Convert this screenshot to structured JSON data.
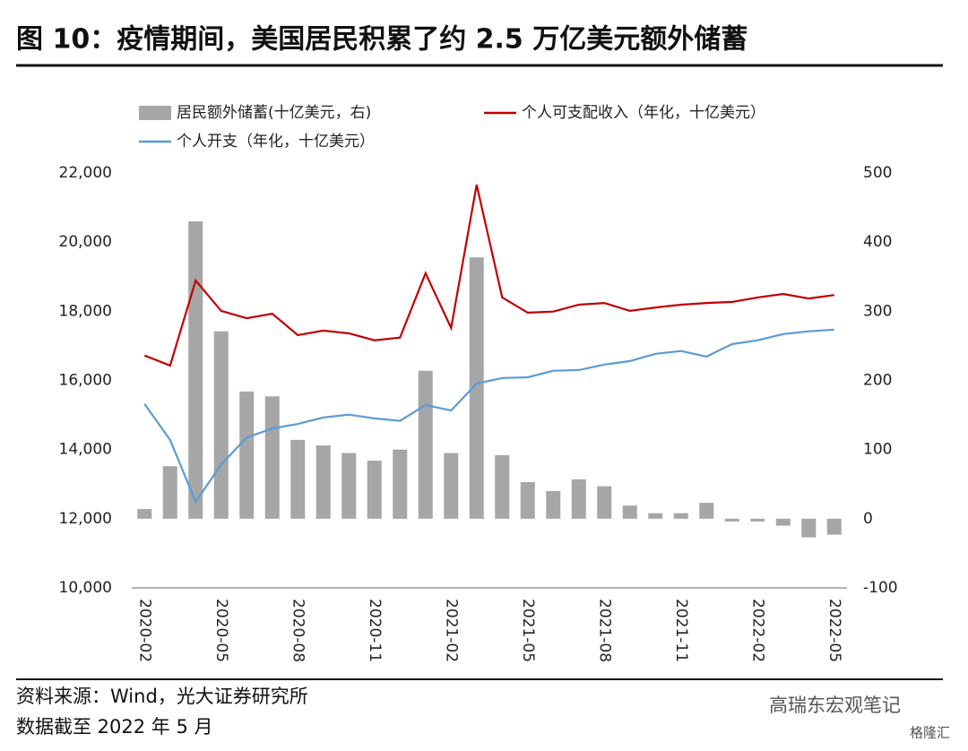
{
  "header": {
    "title": "图 10：疫情期间，美国居民积累了约 2.5 万亿美元额外储蓄"
  },
  "chart_data": {
    "type": "combo",
    "categories": [
      "2020-02",
      null,
      null,
      "2020-05",
      null,
      null,
      "2020-08",
      null,
      null,
      "2020-11",
      null,
      null,
      "2021-02",
      null,
      null,
      "2021-05",
      null,
      null,
      "2021-08",
      null,
      null,
      "2021-11",
      null,
      null,
      "2022-02",
      null,
      null,
      "2022-05"
    ],
    "series": [
      {
        "name": "居民额外储蓄(十亿美元，右)",
        "color": "#a6a6a6",
        "kind": "bar",
        "axis": "y2",
        "values": [
          14,
          76,
          430,
          271,
          184,
          177,
          114,
          106,
          95,
          84,
          100,
          214,
          95,
          378,
          92,
          53,
          40,
          57,
          47,
          19,
          8,
          8,
          23,
          -4,
          -4,
          -10,
          -27,
          -23
        ]
      },
      {
        "name": "个人可支配收入（年化，十亿美元）",
        "color": "#c00000",
        "kind": "line",
        "values": [
          16720,
          16430,
          18890,
          18010,
          17800,
          17930,
          17310,
          17440,
          17360,
          17160,
          17240,
          19100,
          17520,
          21660,
          18400,
          17960,
          17990,
          18190,
          18240,
          18010,
          18110,
          18190,
          18240,
          18270,
          18400,
          18500,
          18370,
          18470
        ]
      },
      {
        "name": "个人开支（年化，十亿美元）",
        "color": "#5b9bd5",
        "kind": "line",
        "values": [
          15320,
          14280,
          12490,
          13570,
          14350,
          14610,
          14740,
          14930,
          15010,
          14900,
          14830,
          15290,
          15130,
          15910,
          16070,
          16090,
          16280,
          16300,
          16460,
          16560,
          16770,
          16850,
          16690,
          17050,
          17160,
          17340,
          17420,
          17470
        ]
      }
    ],
    "ylim": [
      10000,
      22000
    ],
    "yticks": [
      {
        "value": 10000,
        "label": "10,000"
      },
      {
        "value": 12000,
        "label": "12,000"
      },
      {
        "value": 14000,
        "label": "14,000"
      },
      {
        "value": 16000,
        "label": "16,000"
      },
      {
        "value": 18000,
        "label": "18,000"
      },
      {
        "value": 20000,
        "label": "20,000"
      },
      {
        "value": 22000,
        "label": "22,000"
      }
    ],
    "y2lim": [
      -100,
      500
    ],
    "y2ticks": [
      -100,
      0,
      100,
      200,
      300,
      400,
      500
    ]
  },
  "footer": {
    "source": "资料来源：Wind，光大证券研究所",
    "note": "数据截至 2022 年 5 月",
    "watermark": "高瑞东宏观笔记",
    "logo": "格隆汇"
  }
}
